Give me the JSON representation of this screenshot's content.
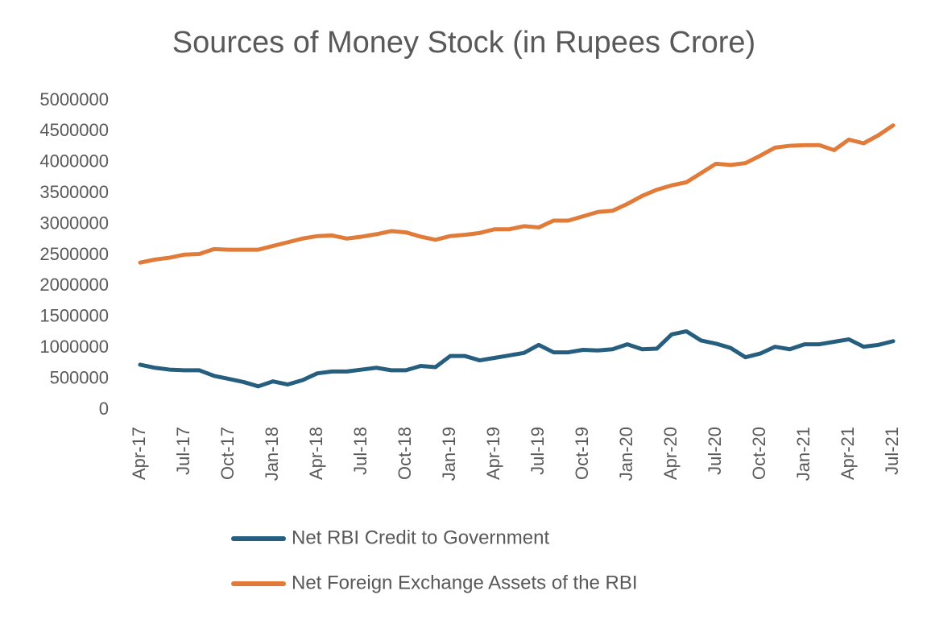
{
  "chart_data": {
    "type": "line",
    "title": "Sources of Money Stock (in Rupees Crore)",
    "categories": [
      "Apr-17",
      null,
      null,
      "Jul-17",
      null,
      null,
      "Oct-17",
      null,
      null,
      "Jan-18",
      null,
      null,
      "Apr-18",
      null,
      null,
      "Jul-18",
      null,
      null,
      "Oct-18",
      null,
      null,
      "Jan-19",
      null,
      null,
      "Apr-19",
      null,
      null,
      "Jul-19",
      null,
      null,
      "Oct-19",
      null,
      null,
      "Jan-20",
      null,
      null,
      "Apr-20",
      null,
      null,
      "Jul-20",
      null,
      null,
      "Oct-20",
      null,
      null,
      "Jan-21",
      null,
      null,
      "Apr-21",
      null,
      null,
      "Jul-21"
    ],
    "series": [
      {
        "name": "Net RBI Credit to Government",
        "color": "#255e7e",
        "values": [
          730000,
          680000,
          650000,
          640000,
          640000,
          550000,
          500000,
          450000,
          380000,
          460000,
          410000,
          480000,
          590000,
          620000,
          620000,
          650000,
          680000,
          640000,
          640000,
          710000,
          690000,
          870000,
          870000,
          800000,
          840000,
          880000,
          920000,
          1050000,
          930000,
          930000,
          970000,
          960000,
          980000,
          1060000,
          980000,
          990000,
          1220000,
          1270000,
          1120000,
          1070000,
          1000000,
          850000,
          910000,
          1020000,
          980000,
          1060000,
          1060000,
          1100000,
          1140000,
          1020000,
          1050000,
          1110000
        ]
      },
      {
        "name": "Net Foreign Exchange Assets of the RBI",
        "color": "#e07b39",
        "values": [
          2380000,
          2430000,
          2460000,
          2510000,
          2520000,
          2600000,
          2590000,
          2590000,
          2590000,
          2650000,
          2710000,
          2770000,
          2810000,
          2820000,
          2770000,
          2800000,
          2840000,
          2890000,
          2870000,
          2800000,
          2750000,
          2810000,
          2830000,
          2860000,
          2920000,
          2920000,
          2970000,
          2950000,
          3060000,
          3060000,
          3130000,
          3200000,
          3220000,
          3330000,
          3460000,
          3560000,
          3630000,
          3680000,
          3830000,
          3980000,
          3960000,
          3990000,
          4110000,
          4240000,
          4270000,
          4280000,
          4280000,
          4200000,
          4370000,
          4310000,
          4440000,
          4600000
        ]
      }
    ],
    "ylim": [
      0,
      5000000
    ],
    "yticks": [
      0,
      500000,
      1000000,
      1500000,
      2000000,
      2500000,
      3000000,
      3500000,
      4000000,
      4500000,
      5000000
    ],
    "grid": false,
    "legend": "bottom"
  }
}
